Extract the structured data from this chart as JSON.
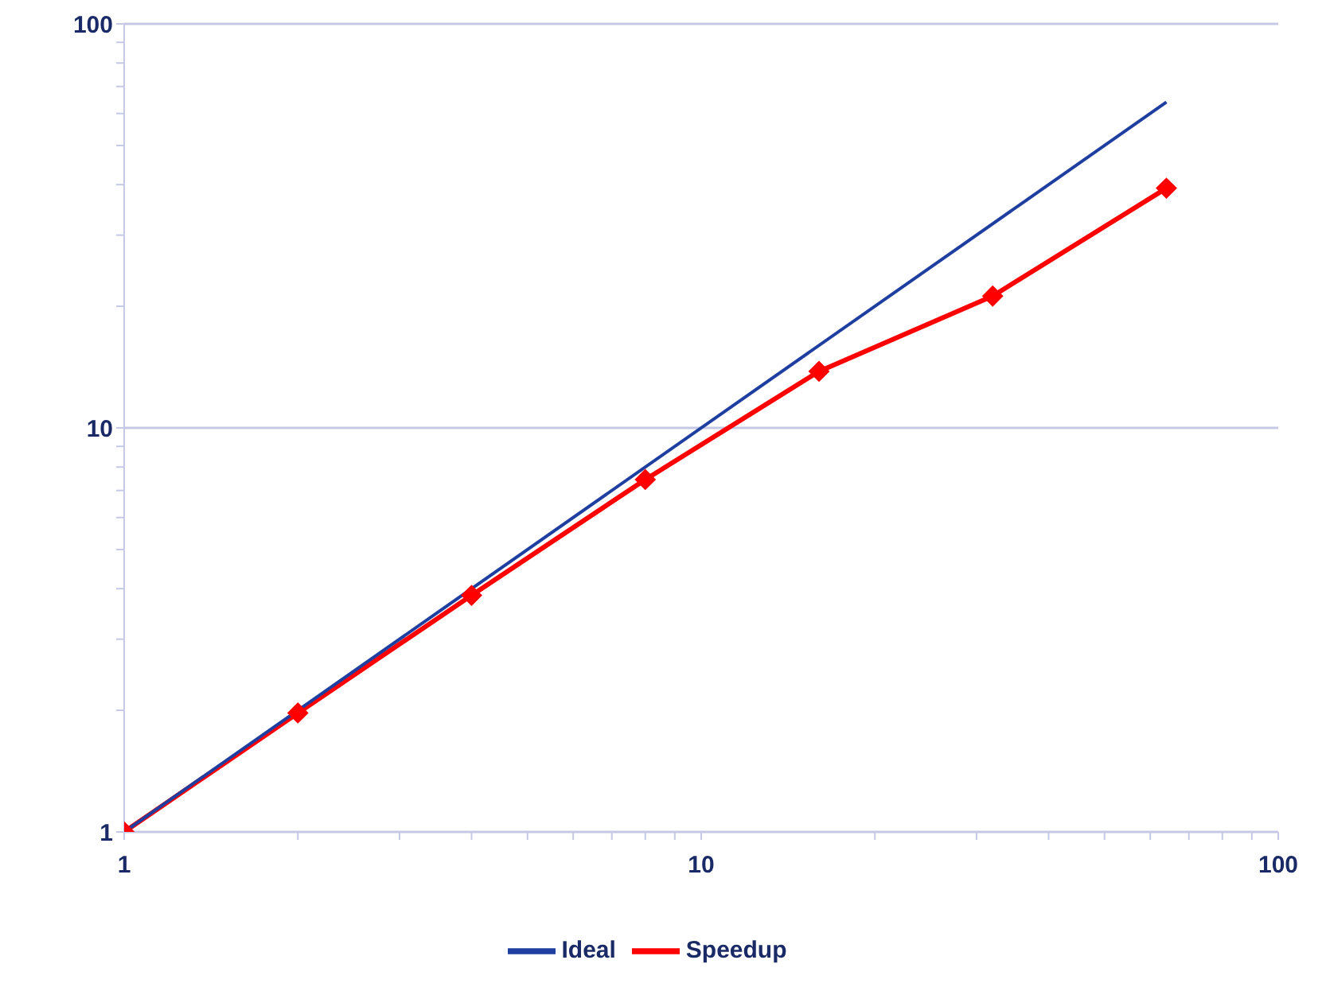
{
  "chart_data": {
    "type": "line",
    "log": "xy",
    "grid": "y",
    "legend": "bottom",
    "xlim": [
      1,
      100
    ],
    "ylim": [
      1,
      100
    ],
    "xticks": [
      1,
      {
        "value": 2,
        "label": null
      },
      {
        "value": 3,
        "label": null
      },
      {
        "value": 4,
        "label": null
      },
      {
        "value": 5,
        "label": null
      },
      {
        "value": 6,
        "label": null
      },
      {
        "value": 7,
        "label": null
      },
      {
        "value": 8,
        "label": null
      },
      {
        "value": 9,
        "label": null
      },
      10,
      {
        "value": 20,
        "label": null
      },
      {
        "value": 30,
        "label": null
      },
      {
        "value": 40,
        "label": null
      },
      {
        "value": 50,
        "label": null
      },
      {
        "value": 60,
        "label": null
      },
      {
        "value": 70,
        "label": null
      },
      {
        "value": 80,
        "label": null
      },
      {
        "value": 90,
        "label": null
      },
      100
    ],
    "yticks": [
      1,
      {
        "value": 2,
        "label": null
      },
      {
        "value": 3,
        "label": null
      },
      {
        "value": 4,
        "label": null
      },
      {
        "value": 5,
        "label": null
      },
      {
        "value": 6,
        "label": null
      },
      {
        "value": 7,
        "label": null
      },
      {
        "value": 8,
        "label": null
      },
      {
        "value": 9,
        "label": null
      },
      10,
      {
        "value": 20,
        "label": null
      },
      {
        "value": 30,
        "label": null
      },
      {
        "value": 40,
        "label": null
      },
      {
        "value": 50,
        "label": null
      },
      {
        "value": 60,
        "label": null
      },
      {
        "value": 70,
        "label": null
      },
      {
        "value": 80,
        "label": null
      },
      {
        "value": 90,
        "label": null
      },
      100
    ],
    "series": [
      {
        "name": "Speedup",
        "color": "#ff0000",
        "marker": "diamond",
        "x": [
          1,
          2,
          4,
          8,
          16,
          32,
          64
        ],
        "values": [
          1,
          1.97,
          3.85,
          7.45,
          13.8,
          21.2,
          39.2
        ]
      },
      {
        "name": "Ideal",
        "color": "#1f3fa0",
        "marker": "none",
        "x": [
          1,
          64
        ],
        "values": [
          1,
          64
        ]
      }
    ]
  }
}
